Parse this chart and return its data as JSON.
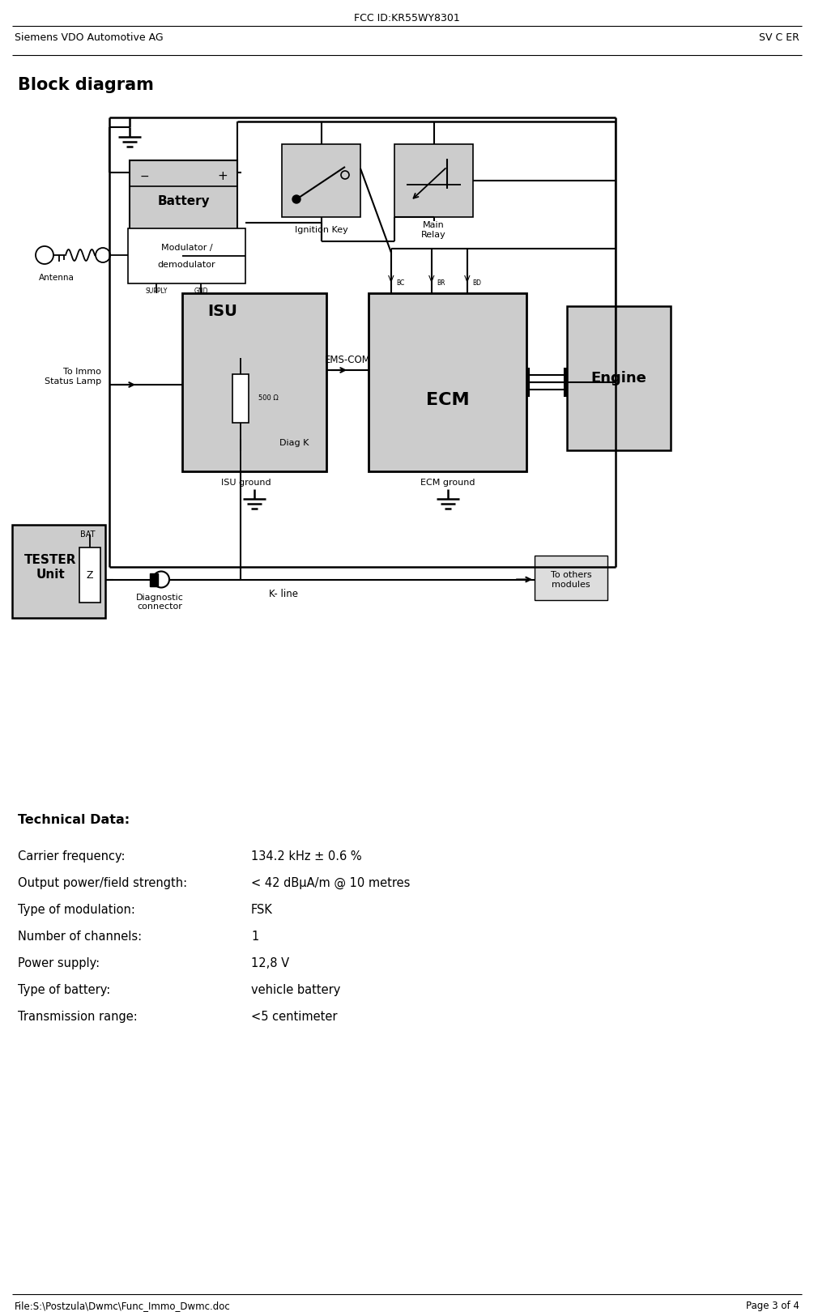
{
  "fcc_id": "FCC ID:KR55WY8301",
  "company_left": "Siemens VDO Automotive AG",
  "company_right": "SV C ER",
  "block_diagram_title": "Block diagram",
  "footer_left": "File:S:\\Postzula\\Dwmc\\Func_Immo_Dwmc.doc",
  "footer_right": "Page 3 of 4",
  "tech_title": "Technical Data:",
  "tech_data": [
    [
      "Carrier frequency:",
      "134.2 kHz ± 0.6 %"
    ],
    [
      "Output power/field strength:",
      "< 42 dBµA/m @ 10 metres"
    ],
    [
      "Type of modulation:",
      "FSK"
    ],
    [
      "Number of channels:",
      "1"
    ],
    [
      "Power supply:",
      "12,8 V"
    ],
    [
      "Type of battery:",
      "vehicle battery"
    ],
    [
      "Transmission range:",
      "<5 centimeter"
    ]
  ],
  "bg_color": "#ffffff",
  "line_color": "#000000",
  "box_fill": "#cccccc",
  "box_fill_white": "#ffffff"
}
